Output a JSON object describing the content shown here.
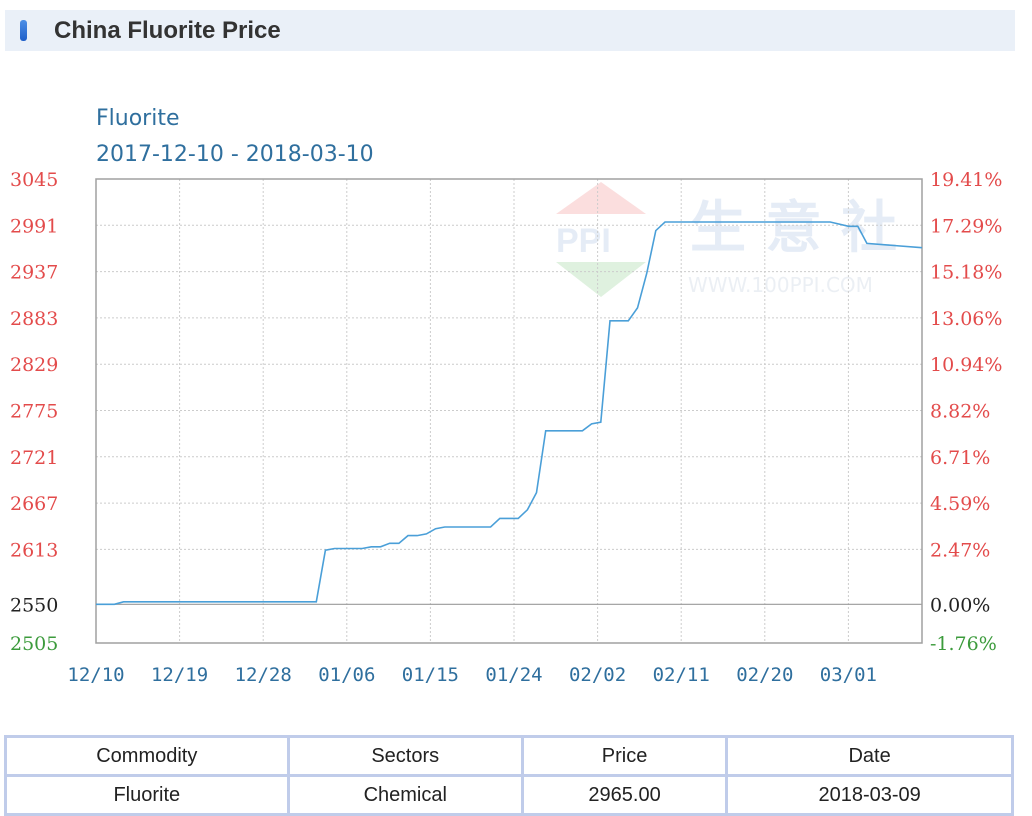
{
  "header": {
    "title": "China Fluorite Price"
  },
  "chart_data": {
    "type": "line",
    "title": "Fluorite",
    "subtitle": "2017-12-10 - 2018-03-10",
    "x_tick_labels": [
      "12/10",
      "12/19",
      "12/28",
      "01/06",
      "01/15",
      "01/24",
      "02/02",
      "02/11",
      "02/20",
      "03/01"
    ],
    "y_ticks_left": [
      "3045",
      "2991",
      "2937",
      "2883",
      "2829",
      "2775",
      "2721",
      "2667",
      "2613",
      "2550",
      "2505"
    ],
    "y_ticks_right": [
      "19.41%",
      "17.29%",
      "15.18%",
      "13.06%",
      "10.94%",
      "8.82%",
      "6.71%",
      "4.59%",
      "2.47%",
      "0.00%",
      "-1.76%"
    ],
    "ylim": [
      2505,
      3045
    ],
    "baseline": 2550,
    "x_dates": [
      "2017-12-10",
      "2017-12-12",
      "2017-12-13",
      "2018-01-01",
      "2018-01-02",
      "2018-01-03",
      "2018-01-04",
      "2018-01-05",
      "2018-01-06",
      "2018-01-07",
      "2018-01-08",
      "2018-01-09",
      "2018-01-10",
      "2018-01-11",
      "2018-01-12",
      "2018-01-13",
      "2018-01-14",
      "2018-01-15",
      "2018-01-16",
      "2018-01-17",
      "2018-01-18",
      "2018-01-19",
      "2018-01-20",
      "2018-01-21",
      "2018-01-22",
      "2018-01-23",
      "2018-01-24",
      "2018-01-25",
      "2018-01-26",
      "2018-01-27",
      "2018-01-28",
      "2018-01-29",
      "2018-01-30",
      "2018-01-31",
      "2018-02-01",
      "2018-02-02",
      "2018-02-03",
      "2018-02-04",
      "2018-02-05",
      "2018-02-06",
      "2018-02-07",
      "2018-02-08",
      "2018-02-09",
      "2018-02-10",
      "2018-02-27",
      "2018-02-28",
      "2018-03-02",
      "2018-03-03",
      "2018-03-04",
      "2018-03-10"
    ],
    "series": [
      {
        "values": [
          2550,
          2550,
          2553,
          2553,
          2553,
          2553,
          2613,
          2615,
          2615,
          2615,
          2615,
          2617,
          2617,
          2621,
          2621,
          2630,
          2630,
          2632,
          2638,
          2640,
          2640,
          2640,
          2640,
          2640,
          2640,
          2650,
          2650,
          2650,
          2660,
          2680,
          2752,
          2752,
          2752,
          2752,
          2752,
          2760,
          2762,
          2880,
          2880,
          2880,
          2895,
          2935,
          2985,
          2995,
          2995,
          2995,
          2990,
          2990,
          2970,
          2965
        ]
      }
    ],
    "colors": {
      "line": "#4a9fd8",
      "left_axis": "#e34b4b",
      "baseline_label": "#222222",
      "below_baseline": "#3c9b3c",
      "title": "#2f6f9e",
      "grid": "#cccccc"
    }
  },
  "watermark": {
    "brand": "生 意 社",
    "url": "WWW.100PPI.COM"
  },
  "table": {
    "headers": [
      "Commodity",
      "Sectors",
      "Price",
      "Date"
    ],
    "rows": [
      [
        "Fluorite",
        "Chemical",
        "2965.00",
        "2018-03-09"
      ]
    ]
  }
}
